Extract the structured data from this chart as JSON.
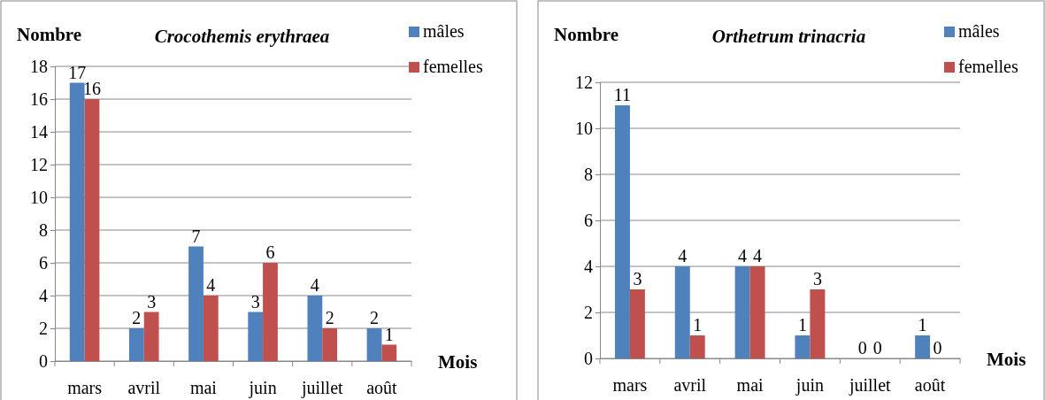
{
  "chart_data": [
    {
      "type": "bar",
      "title": "Crocothemis erythraea",
      "ylabel": "Nombre",
      "xlabel": "Mois",
      "categories": [
        "mars",
        "avril",
        "mai",
        "juin",
        "juillet",
        "août"
      ],
      "series": [
        {
          "name": "mâles",
          "color": "#4f81bd",
          "values": [
            17,
            2,
            7,
            3,
            4,
            2
          ]
        },
        {
          "name": "femelles",
          "color": "#c0504d",
          "values": [
            16,
            3,
            4,
            6,
            2,
            1
          ]
        }
      ],
      "ylim": [
        0,
        18
      ],
      "yticks": [
        0,
        2,
        4,
        6,
        8,
        10,
        12,
        14,
        16,
        18
      ],
      "grid": "y",
      "legend": "top right",
      "data_labels": true
    },
    {
      "type": "bar",
      "title": "Orthetrum trinacria",
      "ylabel": "Nombre",
      "xlabel": "Mois",
      "categories": [
        "mars",
        "avril",
        "mai",
        "juin",
        "juillet",
        "août"
      ],
      "series": [
        {
          "name": "mâles",
          "color": "#4f81bd",
          "values": [
            11,
            4,
            4,
            1,
            0,
            1
          ]
        },
        {
          "name": "femelles",
          "color": "#c0504d",
          "values": [
            3,
            1,
            4,
            3,
            0,
            0
          ]
        }
      ],
      "ylim": [
        0,
        12
      ],
      "yticks": [
        0,
        2,
        4,
        6,
        8,
        10,
        12
      ],
      "grid": "y",
      "legend": "top right",
      "data_labels": true
    }
  ]
}
